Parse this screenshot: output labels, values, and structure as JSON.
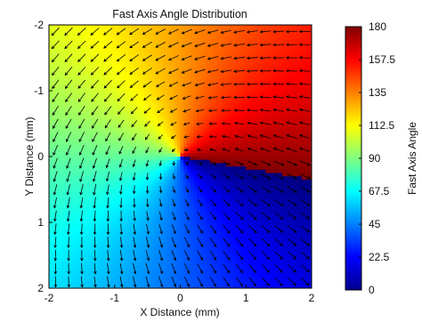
{
  "chart_data": {
    "type": "heatmap",
    "title": "Fast Axis Angle Distribution",
    "xlabel": "X Distance (mm)",
    "ylabel": "Y Distance (mm)",
    "xlim": [
      -2,
      2
    ],
    "ylim": [
      -2,
      2
    ],
    "y_axis_direction": "reversed",
    "x_ticks": [
      "-2",
      "-1",
      "0",
      "1",
      "2"
    ],
    "y_ticks": [
      "-2",
      "-1",
      "0",
      "1",
      "2"
    ],
    "colorbar": {
      "label": "Fast Axis Angle",
      "range": [
        0,
        180
      ],
      "ticks": [
        "0",
        "22.5",
        "45",
        "67.5",
        "90",
        "112.5",
        "135",
        "157.5",
        "180"
      ],
      "colormap": "jet"
    },
    "field": {
      "description": "angle = (atan2-based azimuth about origin, spiral pattern)",
      "center": [
        0,
        0
      ],
      "dark_red_boundary_through_points": [
        [
          -2,
          -0.4
        ],
        [
          2,
          0.5
        ]
      ]
    },
    "quiver": {
      "grid_step": 0.2,
      "color": "#000000"
    },
    "grid": false,
    "legend": "none"
  }
}
